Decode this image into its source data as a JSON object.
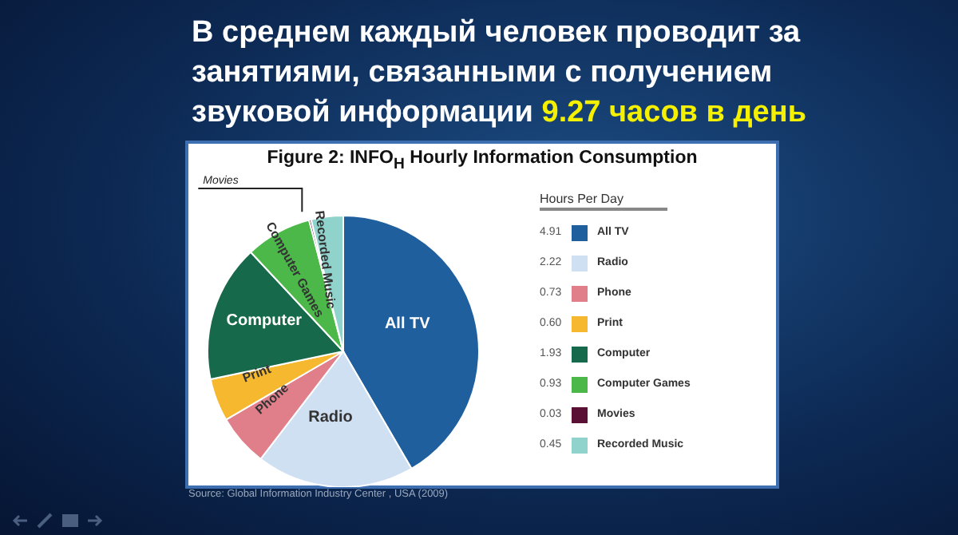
{
  "chart_data": {
    "type": "pie",
    "title": "В среднем каждый человек проводит за занятиями, связанными с получением звуковой информации",
    "subtitle": "9.27 часов в день",
    "annotations": [
      "Figure 2:  INFO$_{H}$ Hourly Information Consumption",
      "Source: Global Information Industry Center , USA (2009)"
    ],
    "legend_title": "Hours Per Day",
    "legend": "right",
    "value_labels": [
      "4.91",
      "2.22",
      "0.73",
      "0.60",
      "1.93",
      "0.93",
      "0.03",
      "0.45"
    ],
    "categories": [
      "All TV",
      "Radio",
      "Phone",
      "Print",
      "Computer",
      "Computer Games",
      "Movies",
      "Recorded Music"
    ],
    "values": [
      4.91,
      2.22,
      0.73,
      0.6,
      1.93,
      0.93,
      0.03,
      0.45
    ],
    "colors": [
      "#1f5f9e",
      "#cfe0f2",
      "#e07f8a",
      "#f5b82e",
      "#17694b",
      "#4cb84a",
      "#5a1035",
      "#8fd3cc"
    ]
  }
}
